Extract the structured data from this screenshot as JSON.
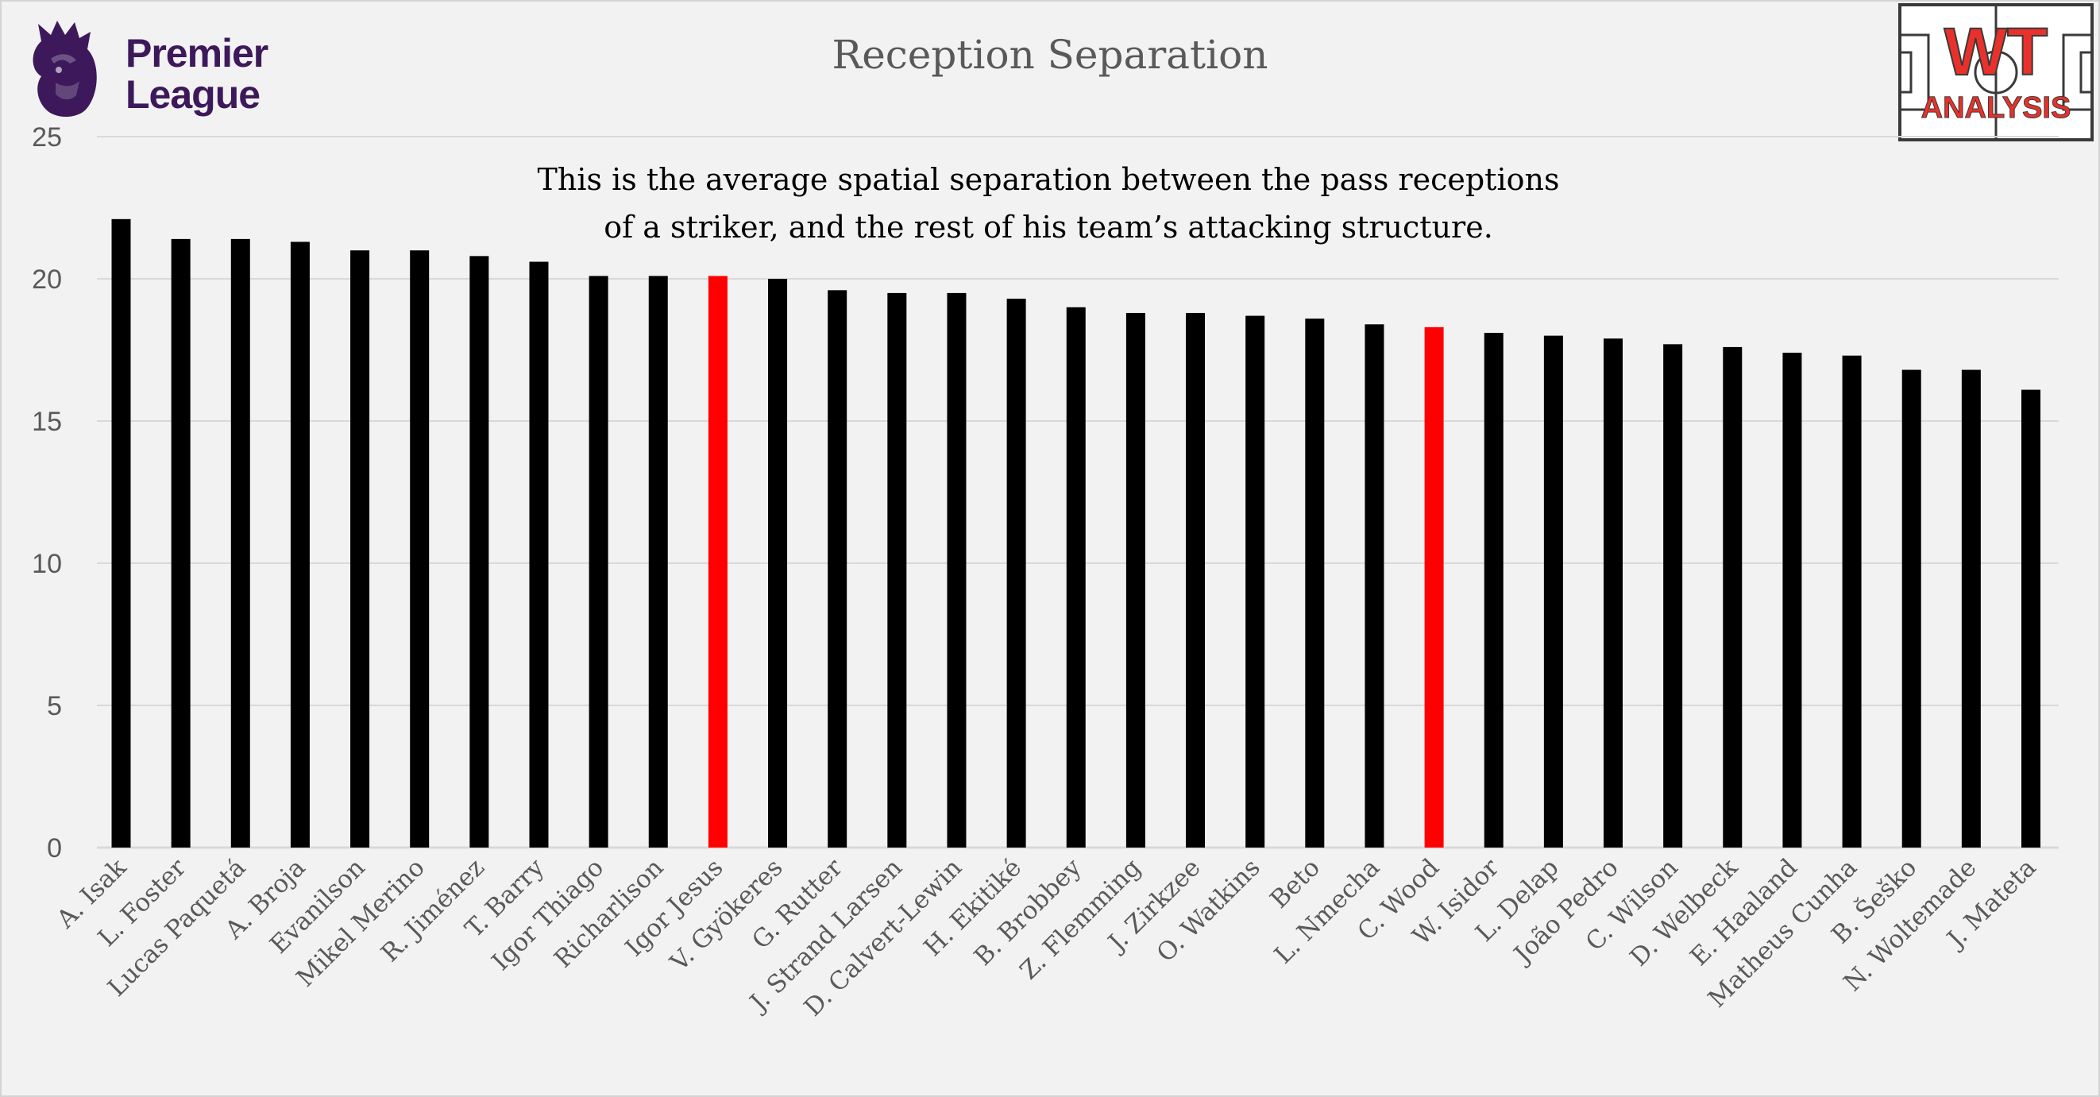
{
  "colors": {
    "background": "#f2f2f2",
    "bar": "#000000",
    "highlight": "#ff0000",
    "grid": "#d9d9d9",
    "axis_text": "#595959",
    "pl_purple": "#3d195b",
    "wt_red": "#e8312a"
  },
  "logos": {
    "premier_league": {
      "line1": "Premier",
      "line2": "League",
      "icon": "lion-crest-icon"
    },
    "wt_analysis": {
      "line1": "WT",
      "line2": "ANALYSIS",
      "icon": "pitch-icon"
    }
  },
  "chart_data": {
    "type": "bar",
    "title": "Reception Separation",
    "subtitle_lines": [
      "This is the average spatial separation between the pass receptions",
      "of a striker, and the rest of his team’s attacking structure."
    ],
    "xlabel": "",
    "ylabel": "",
    "ylim": [
      0,
      25
    ],
    "yticks": [
      0,
      5,
      10,
      15,
      20,
      25
    ],
    "grid": true,
    "legend": "none",
    "categories": [
      "A. Isak",
      "L. Foster",
      "Lucas Paquetá",
      "A. Broja",
      "Evanilson",
      "Mikel Merino",
      "R. Jiménez",
      "T. Barry",
      "Igor Thiago",
      "Richarlison",
      "Igor Jesus",
      "V. Gyökeres",
      "G. Rutter",
      "J. Strand Larsen",
      "D. Calvert-Lewin",
      "H. Ekitiké",
      "B. Brobbey",
      "Z. Flemming",
      "J. Zirkzee",
      "O. Watkins",
      "Beto",
      "L. Nmecha",
      "C. Wood",
      "W. Isidor",
      "L. Delap",
      "João Pedro",
      "C. Wilson",
      "D. Welbeck",
      "E. Haaland",
      "Matheus Cunha",
      "B. Šeško",
      "N. Woltemade",
      "J. Mateta"
    ],
    "values": [
      22.1,
      21.4,
      21.4,
      21.3,
      21.0,
      21.0,
      20.8,
      20.6,
      20.1,
      20.1,
      20.1,
      20.0,
      19.6,
      19.5,
      19.5,
      19.3,
      19.0,
      18.8,
      18.8,
      18.7,
      18.6,
      18.4,
      18.3,
      18.1,
      18.0,
      17.9,
      17.7,
      17.6,
      17.4,
      17.3,
      16.8,
      16.8,
      16.1
    ],
    "highlighted": [
      "Igor Jesus",
      "C. Wood"
    ]
  }
}
